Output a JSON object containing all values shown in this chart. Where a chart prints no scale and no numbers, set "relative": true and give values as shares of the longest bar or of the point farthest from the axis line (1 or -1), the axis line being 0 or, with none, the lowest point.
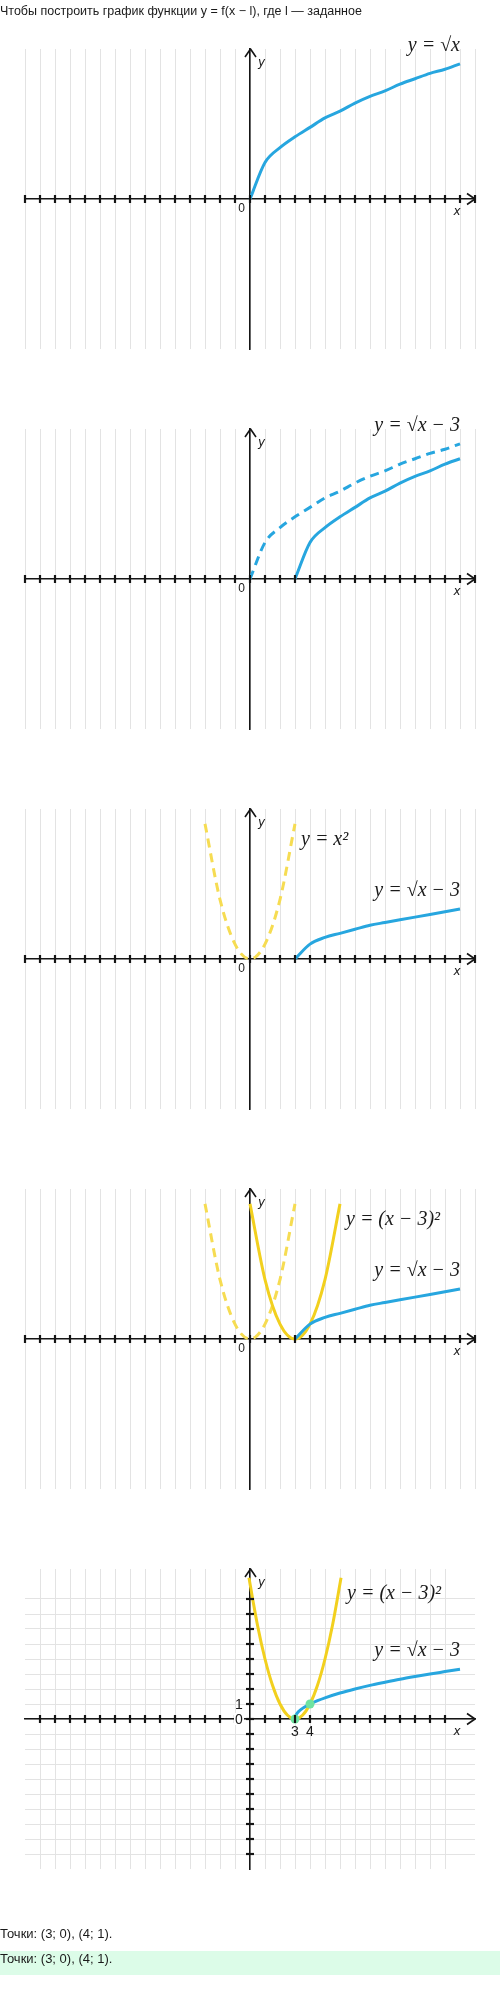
{
  "chart_data": [
    {
      "type": "line",
      "title": "Чтобы построить график функции y = f(x − l), где l — заданное",
      "xlabel": "x",
      "ylabel": "y",
      "relative": true,
      "categories": [
        null,
        null,
        null,
        null,
        null,
        null,
        null,
        null,
        null,
        null,
        null,
        null,
        null,
        null,
        null,
        null,
        null,
        null,
        null,
        null,
        null,
        null,
        null,
        null,
        null,
        null,
        null,
        null,
        null,
        null,
        null
      ],
      "grid": "x",
      "series": [
        {
          "name": "y = √x",
          "color": "#27a6df",
          "values": [
            null,
            null,
            null,
            null,
            null,
            null,
            null,
            null,
            null,
            null,
            null,
            null,
            null,
            null,
            null,
            0,
            0.27,
            0.38,
            0.46,
            0.53,
            0.6,
            0.65,
            0.71,
            0.76,
            0.8,
            0.85,
            0.89,
            0.93,
            0.96,
            1,
            null
          ]
        }
      ],
      "annotations": [
        "0"
      ]
    },
    {
      "type": "line",
      "xlabel": "x",
      "ylabel": "y",
      "relative": true,
      "categories": [
        null,
        null,
        null,
        null,
        null,
        null,
        null,
        null,
        null,
        null,
        null,
        null,
        null,
        null,
        null,
        null,
        null,
        null,
        null,
        null,
        null,
        null,
        null,
        null,
        null,
        null,
        null,
        null,
        null,
        null,
        null
      ],
      "grid": "x",
      "series": [
        {
          "color": "#27a6df",
          "line_style": "dashed",
          "values": [
            null,
            null,
            null,
            null,
            null,
            null,
            null,
            null,
            null,
            null,
            null,
            null,
            null,
            null,
            null,
            0,
            0.27,
            0.38,
            0.46,
            0.53,
            0.6,
            0.65,
            0.71,
            0.76,
            0.8,
            0.85,
            0.89,
            0.93,
            0.96,
            1,
            null
          ]
        },
        {
          "name": "y = √x − 3",
          "color": "#27a6df",
          "values": [
            null,
            null,
            null,
            null,
            null,
            null,
            null,
            null,
            null,
            null,
            null,
            null,
            null,
            null,
            null,
            null,
            null,
            null,
            0,
            0.27,
            0.38,
            0.46,
            0.53,
            0.6,
            0.65,
            0.71,
            0.76,
            0.8,
            0.85,
            0.89,
            null
          ]
        }
      ],
      "annotations": [
        "0"
      ]
    },
    {
      "type": "line",
      "xlabel": "x",
      "ylabel": "y",
      "relative": true,
      "categories": [
        null,
        null,
        null,
        null,
        null,
        null,
        null,
        null,
        null,
        null,
        null,
        null,
        null,
        null,
        null,
        null,
        null,
        null,
        null,
        null,
        null,
        null,
        null,
        null,
        null,
        null,
        null,
        null,
        null,
        null,
        null
      ],
      "grid": "x",
      "series": [
        {
          "name": "y = x²",
          "color": "#f6dc52",
          "line_style": "dashed",
          "values": [
            null,
            null,
            null,
            null,
            null,
            null,
            null,
            null,
            null,
            null,
            null,
            null,
            1,
            0.44,
            0.11,
            0,
            0.11,
            0.44,
            1,
            null,
            null,
            null,
            null,
            null,
            null,
            null,
            null,
            null,
            null,
            null,
            null
          ]
        },
        {
          "name": "y = √x − 3",
          "color": "#27a6df",
          "values": [
            null,
            null,
            null,
            null,
            null,
            null,
            null,
            null,
            null,
            null,
            null,
            null,
            null,
            null,
            null,
            null,
            null,
            null,
            0,
            0.11,
            0.16,
            0.19,
            0.22,
            0.25,
            0.27,
            0.29,
            0.31,
            0.33,
            0.35,
            0.37,
            null
          ]
        }
      ],
      "annotations": [
        "0"
      ]
    },
    {
      "type": "line",
      "xlabel": "x",
      "ylabel": "y",
      "relative": true,
      "categories": [
        null,
        null,
        null,
        null,
        null,
        null,
        null,
        null,
        null,
        null,
        null,
        null,
        null,
        null,
        null,
        null,
        null,
        null,
        null,
        null,
        null,
        null,
        null,
        null,
        null,
        null,
        null,
        null,
        null,
        null,
        null
      ],
      "grid": "x",
      "series": [
        {
          "color": "#f6dc52",
          "line_style": "dashed",
          "values": [
            null,
            null,
            null,
            null,
            null,
            null,
            null,
            null,
            null,
            null,
            null,
            null,
            1,
            0.44,
            0.11,
            0,
            0.11,
            0.44,
            1,
            null,
            null,
            null,
            null,
            null,
            null,
            null,
            null,
            null,
            null,
            null,
            null
          ]
        },
        {
          "name": "y = (x − 3)²",
          "color": "#f2d01e",
          "values": [
            null,
            null,
            null,
            null,
            null,
            null,
            null,
            null,
            null,
            null,
            null,
            null,
            null,
            null,
            null,
            1,
            0.44,
            0.11,
            0,
            0.11,
            0.44,
            1,
            null,
            null,
            null,
            null,
            null,
            null,
            null,
            null,
            null
          ]
        },
        {
          "name": "y = √x − 3",
          "color": "#27a6df",
          "values": [
            null,
            null,
            null,
            null,
            null,
            null,
            null,
            null,
            null,
            null,
            null,
            null,
            null,
            null,
            null,
            null,
            null,
            null,
            0,
            0.11,
            0.16,
            0.19,
            0.22,
            0.25,
            0.27,
            0.29,
            0.31,
            0.33,
            0.35,
            0.37,
            null
          ]
        }
      ],
      "annotations": [
        "0"
      ]
    },
    {
      "type": "line",
      "xlabel": "x",
      "ylabel": "y",
      "xlim": [
        -15,
        15
      ],
      "ylim": [
        -10,
        10
      ],
      "xticks": [
        {
          "value": -14,
          "label": null
        },
        {
          "value": -13,
          "label": null
        },
        {
          "value": -12,
          "label": null
        },
        {
          "value": -11,
          "label": null
        },
        {
          "value": -10,
          "label": null
        },
        {
          "value": -9,
          "label": null
        },
        {
          "value": -8,
          "label": null
        },
        {
          "value": -7,
          "label": null
        },
        {
          "value": -6,
          "label": null
        },
        {
          "value": -5,
          "label": null
        },
        {
          "value": -4,
          "label": null
        },
        {
          "value": -3,
          "label": null
        },
        {
          "value": -2,
          "label": null
        },
        {
          "value": -1,
          "label": null
        },
        {
          "value": 1,
          "label": null
        },
        {
          "value": 2,
          "label": null
        },
        3,
        4,
        {
          "value": 5,
          "label": null
        },
        {
          "value": 6,
          "label": null
        },
        {
          "value": 7,
          "label": null
        },
        {
          "value": 8,
          "label": null
        },
        {
          "value": 9,
          "label": null
        },
        {
          "value": 10,
          "label": null
        },
        {
          "value": 11,
          "label": null
        },
        {
          "value": 12,
          "label": null
        },
        {
          "value": 13,
          "label": null
        }
      ],
      "yticks": [
        {
          "value": -9,
          "label": null
        },
        {
          "value": -8,
          "label": null
        },
        {
          "value": -7,
          "label": null
        },
        {
          "value": -6,
          "label": null
        },
        {
          "value": -5,
          "label": null
        },
        {
          "value": -4,
          "label": null
        },
        {
          "value": -3,
          "label": null
        },
        {
          "value": -2,
          "label": null
        },
        {
          "value": -1,
          "label": null
        },
        0,
        1,
        {
          "value": 2,
          "label": null
        },
        {
          "value": 3,
          "label": null
        },
        {
          "value": 4,
          "label": null
        },
        {
          "value": 5,
          "label": null
        },
        {
          "value": 6,
          "label": null
        },
        {
          "value": 7,
          "label": null
        },
        {
          "value": 8,
          "label": null
        }
      ],
      "grid": true,
      "series": [
        {
          "name": "y = (x − 3)²",
          "color": "#f2d01e",
          "x": [
            -0.07,
            0.5,
            1,
            1.5,
            2,
            2.5,
            3,
            3.5,
            4,
            4.5,
            5,
            5.5,
            6.07
          ],
          "values": [
            9.42,
            6.25,
            4,
            2.25,
            1,
            0.25,
            0,
            0.25,
            1,
            2.25,
            4,
            6.25,
            9.42
          ]
        },
        {
          "name": "y = √x − 3",
          "color": "#27a6df",
          "x": [
            3,
            3.05,
            3.15,
            3.3,
            3.5,
            3.75,
            4,
            4.5,
            5,
            6,
            7,
            8,
            9,
            10,
            11,
            12,
            13,
            14
          ],
          "values": [
            0,
            0.22,
            0.39,
            0.55,
            0.71,
            0.87,
            1,
            1.22,
            1.41,
            1.73,
            2,
            2.24,
            2.45,
            2.65,
            2.83,
            3,
            3.16,
            3.32
          ]
        },
        {
          "type": "scatter",
          "marker": "circle",
          "color": "#6fe3a0",
          "x": [
            3,
            4
          ],
          "values": [
            0,
            1
          ]
        }
      ]
    },
    {
      "type": "other",
      "annotations": [
        "Точки: (3; 0), (4; 1).",
        "Точки: (3; 0), (4; 1)."
      ]
    }
  ]
}
